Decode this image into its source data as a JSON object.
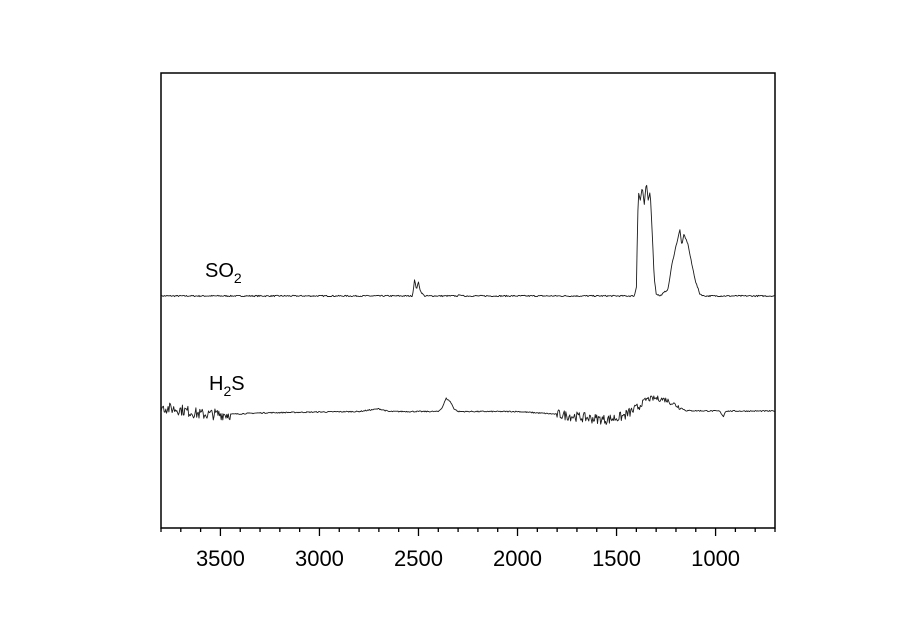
{
  "chart_data": {
    "type": "line",
    "title": "",
    "xlabel": "",
    "ylabel": "",
    "x_reversed": true,
    "xlim": [
      3800,
      700
    ],
    "ylim": [
      0,
      1
    ],
    "xticks": [
      3500,
      3000,
      2500,
      2000,
      1500,
      1000
    ],
    "xtick_labels": [
      "3500",
      "3000",
      "2500",
      "2000",
      "1500",
      "1000"
    ],
    "y_axis_labels_shown": false,
    "grid": false,
    "legend": "none",
    "line_color": "#1a1a1a",
    "series": [
      {
        "name": "SO",
        "name_subscript": "2",
        "baseline": 0.51,
        "noise": 0.003,
        "points": [
          [
            3800,
            0.51
          ],
          [
            2530,
            0.51
          ],
          [
            2520,
            0.545
          ],
          [
            2510,
            0.525
          ],
          [
            2500,
            0.54
          ],
          [
            2490,
            0.52
          ],
          [
            2470,
            0.51
          ],
          [
            2300,
            0.51
          ],
          [
            2290,
            0.514
          ],
          [
            2280,
            0.51
          ],
          [
            1410,
            0.51
          ],
          [
            1400,
            0.53
          ],
          [
            1390,
            0.74
          ],
          [
            1380,
            0.72
          ],
          [
            1370,
            0.75
          ],
          [
            1360,
            0.71
          ],
          [
            1350,
            0.76
          ],
          [
            1340,
            0.72
          ],
          [
            1330,
            0.74
          ],
          [
            1320,
            0.65
          ],
          [
            1310,
            0.55
          ],
          [
            1300,
            0.515
          ],
          [
            1280,
            0.51
          ],
          [
            1240,
            0.525
          ],
          [
            1220,
            0.58
          ],
          [
            1200,
            0.62
          ],
          [
            1180,
            0.655
          ],
          [
            1170,
            0.62
          ],
          [
            1160,
            0.645
          ],
          [
            1140,
            0.625
          ],
          [
            1120,
            0.58
          ],
          [
            1100,
            0.54
          ],
          [
            1080,
            0.515
          ],
          [
            1060,
            0.51
          ],
          [
            700,
            0.51
          ]
        ]
      },
      {
        "name": "H",
        "name_subscript": "2",
        "name_suffix": "S",
        "baseline": 0.255,
        "noise_regions": [
          {
            "range": [
              3800,
              3450
            ],
            "amplitude": 0.025
          },
          {
            "range": [
              1800,
              1380
            ],
            "amplitude": 0.022
          },
          {
            "range": [
              1380,
              1180
            ],
            "amplitude": 0.012
          }
        ],
        "points": [
          [
            3800,
            0.265
          ],
          [
            3700,
            0.26
          ],
          [
            3600,
            0.25
          ],
          [
            3450,
            0.25
          ],
          [
            3300,
            0.253
          ],
          [
            3000,
            0.255
          ],
          [
            2800,
            0.256
          ],
          [
            2700,
            0.262
          ],
          [
            2650,
            0.256
          ],
          [
            2400,
            0.256
          ],
          [
            2380,
            0.265
          ],
          [
            2360,
            0.285
          ],
          [
            2340,
            0.278
          ],
          [
            2320,
            0.262
          ],
          [
            2300,
            0.256
          ],
          [
            2000,
            0.256
          ],
          [
            1800,
            0.25
          ],
          [
            1650,
            0.242
          ],
          [
            1550,
            0.238
          ],
          [
            1470,
            0.245
          ],
          [
            1400,
            0.262
          ],
          [
            1350,
            0.283
          ],
          [
            1300,
            0.285
          ],
          [
            1250,
            0.282
          ],
          [
            1200,
            0.27
          ],
          [
            1150,
            0.258
          ],
          [
            980,
            0.257
          ],
          [
            960,
            0.245
          ],
          [
            950,
            0.257
          ],
          [
            700,
            0.257
          ]
        ]
      }
    ]
  }
}
